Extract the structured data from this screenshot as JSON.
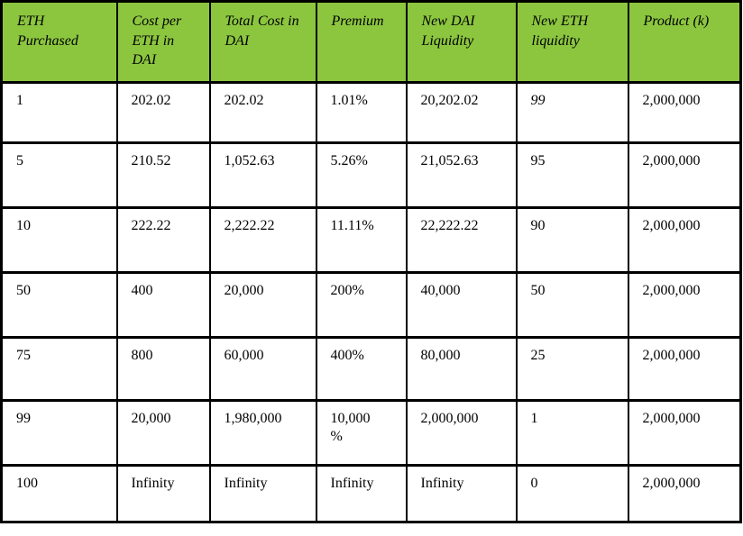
{
  "colors": {
    "header_background": "#8CC63F",
    "border": "#000000",
    "text": "#000000"
  },
  "table": {
    "columns": [
      {
        "label": "ETH Purchased"
      },
      {
        "label": "Cost per ETH in DAI"
      },
      {
        "label": "Total Cost in DAI"
      },
      {
        "label": "Premium"
      },
      {
        "label": "New DAI Liquidity"
      },
      {
        "label": "New ETH liquidity"
      },
      {
        "label": "Product (k)"
      }
    ],
    "rows": [
      [
        "1",
        "202.02",
        "202.02",
        "1.01%",
        "20,202.02",
        "99",
        "2,000,000"
      ],
      [
        "5",
        "210.52",
        "1,052.63",
        "5.26%",
        "21,052.63",
        "95",
        "2,000,000"
      ],
      [
        "10",
        "222.22",
        "2,222.22",
        "11.11%",
        "22,222.22",
        "90",
        "2,000,000"
      ],
      [
        "50",
        "400",
        "20,000",
        "200%",
        "40,000",
        "50",
        "2,000,000"
      ],
      [
        "75",
        "800",
        "60,000",
        "400%",
        "80,000",
        "25",
        "2,000,000"
      ],
      [
        "99",
        "20,000",
        "1,980,000",
        "10,000\n%",
        "2,000,000",
        "1",
        "2,000,000"
      ],
      [
        "100",
        "Infinity",
        "Infinity",
        "Infinity",
        "Infinity",
        "0",
        "2,000,000"
      ]
    ],
    "italic_cells": [
      [
        0,
        5
      ]
    ]
  },
  "chart_data": {
    "type": "table",
    "title": "",
    "categories": [
      "ETH Purchased",
      "Cost per ETH in DAI",
      "Total Cost in DAI",
      "Premium",
      "New DAI Liquidity",
      "New ETH liquidity",
      "Product (k)"
    ],
    "series": [
      {
        "name": "ETH Purchased",
        "values": [
          1,
          5,
          10,
          50,
          75,
          99,
          100
        ]
      },
      {
        "name": "Cost per ETH in DAI",
        "values": [
          202.02,
          210.52,
          222.22,
          400,
          800,
          20000,
          "Infinity"
        ]
      },
      {
        "name": "Total Cost in DAI",
        "values": [
          202.02,
          1052.63,
          2222.22,
          20000,
          60000,
          1980000,
          "Infinity"
        ]
      },
      {
        "name": "Premium",
        "values": [
          "1.01%",
          "5.26%",
          "11.11%",
          "200%",
          "400%",
          "10,000 %",
          "Infinity"
        ]
      },
      {
        "name": "New DAI Liquidity",
        "values": [
          20202.02,
          21052.63,
          22222.22,
          40000,
          80000,
          2000000,
          "Infinity"
        ]
      },
      {
        "name": "New ETH liquidity",
        "values": [
          99,
          95,
          90,
          50,
          25,
          1,
          0
        ]
      },
      {
        "name": "Product (k)",
        "values": [
          2000000,
          2000000,
          2000000,
          2000000,
          2000000,
          2000000,
          2000000
        ]
      }
    ]
  }
}
